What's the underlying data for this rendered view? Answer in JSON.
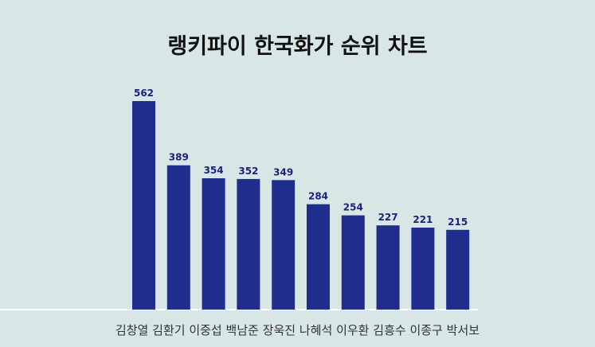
{
  "chart_data": {
    "type": "bar",
    "title": "랭키파이 한국화가 순위 차트",
    "categories": [
      "김창열",
      "김환기",
      "이중섭",
      "백남준",
      "장욱진",
      "나혜석",
      "이우환",
      "김흥수",
      "이종구",
      "박서보"
    ],
    "values": [
      562,
      389,
      354,
      352,
      349,
      284,
      254,
      227,
      221,
      215
    ],
    "ylim": [
      0,
      562
    ],
    "grid": false,
    "legend": "none",
    "bar_color": "#1f2d8c",
    "label_color": "#1a237e",
    "background": "#d8e6e6"
  }
}
